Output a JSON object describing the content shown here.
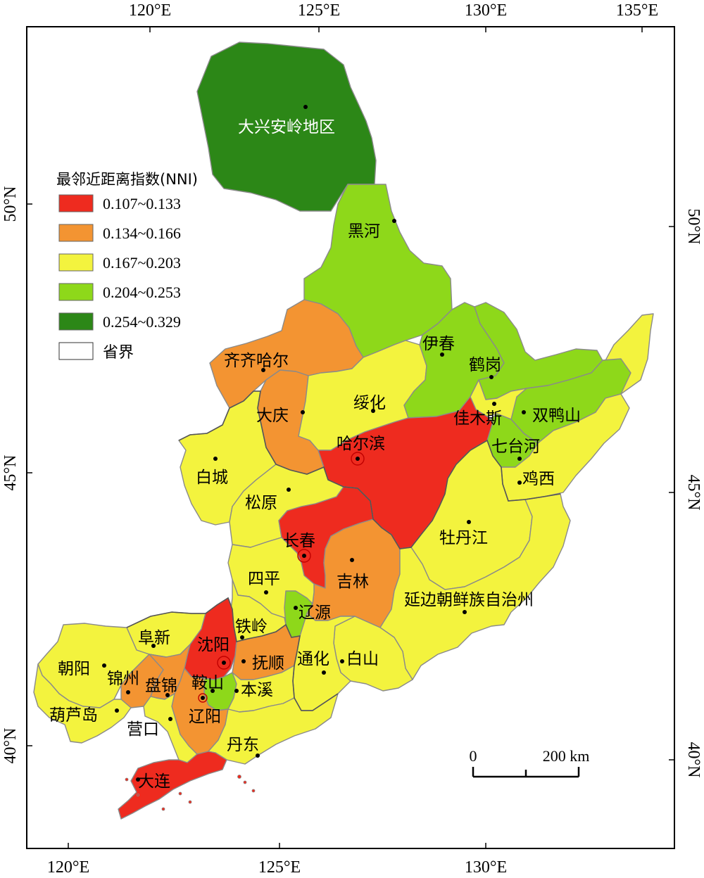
{
  "coords": {
    "top_lon": [
      "120°E",
      "125°E",
      "130°E",
      "135°E"
    ],
    "bottom_lon": [
      "120°E",
      "125°E",
      "130°E"
    ],
    "left_lat": [
      "50°N",
      "45°N",
      "40°N"
    ],
    "right_lat": [
      "50°N",
      "45°N",
      "40°N"
    ]
  },
  "legend": {
    "title": "最邻近距离指数(NNI)",
    "classes": [
      {
        "label": "0.107~0.133",
        "color": "#ee2b1f"
      },
      {
        "label": "0.134~0.166",
        "color": "#f39432"
      },
      {
        "label": "0.167~0.203",
        "color": "#f3f33e"
      },
      {
        "label": "0.204~0.253",
        "color": "#8ed81a"
      },
      {
        "label": "0.254~0.329",
        "color": "#2c8717"
      }
    ],
    "boundary_label": "省界"
  },
  "cities": {
    "daxinganling": "大兴安岭地区",
    "heihe": "黑河",
    "yichun": "伊春",
    "hegang": "鹤岗",
    "qiqihar": "齐齐哈尔",
    "suihua": "绥化",
    "daqing": "大庆",
    "jiamusi": "佳木斯",
    "shuangyashan": "双鸭山",
    "harbin": "哈尔滨",
    "qitaihe": "七台河",
    "baicheng": "白城",
    "jixi": "鸡西",
    "songyuan": "松原",
    "changchun": "长春",
    "mudanjiang": "牡丹江",
    "jilin": "吉林",
    "siping": "四平",
    "yanbian": "延边朝鲜族自治州",
    "liaoyuan": "辽源",
    "fuxin": "阜新",
    "tieling": "铁岭",
    "shenyang": "沈阳",
    "fushun": "抚顺",
    "tonghua": "通化",
    "baishan": "白山",
    "chaoyang": "朝阳",
    "jinzhou": "锦州",
    "panjin": "盘锦",
    "anshan": "鞍山",
    "benxi": "本溪",
    "huludao": "葫芦岛",
    "yingkou": "营口",
    "liaoyang": "辽阳",
    "dandong": "丹东",
    "dalian": "大连"
  },
  "scale": {
    "zero": "0",
    "distance": "200 km"
  }
}
